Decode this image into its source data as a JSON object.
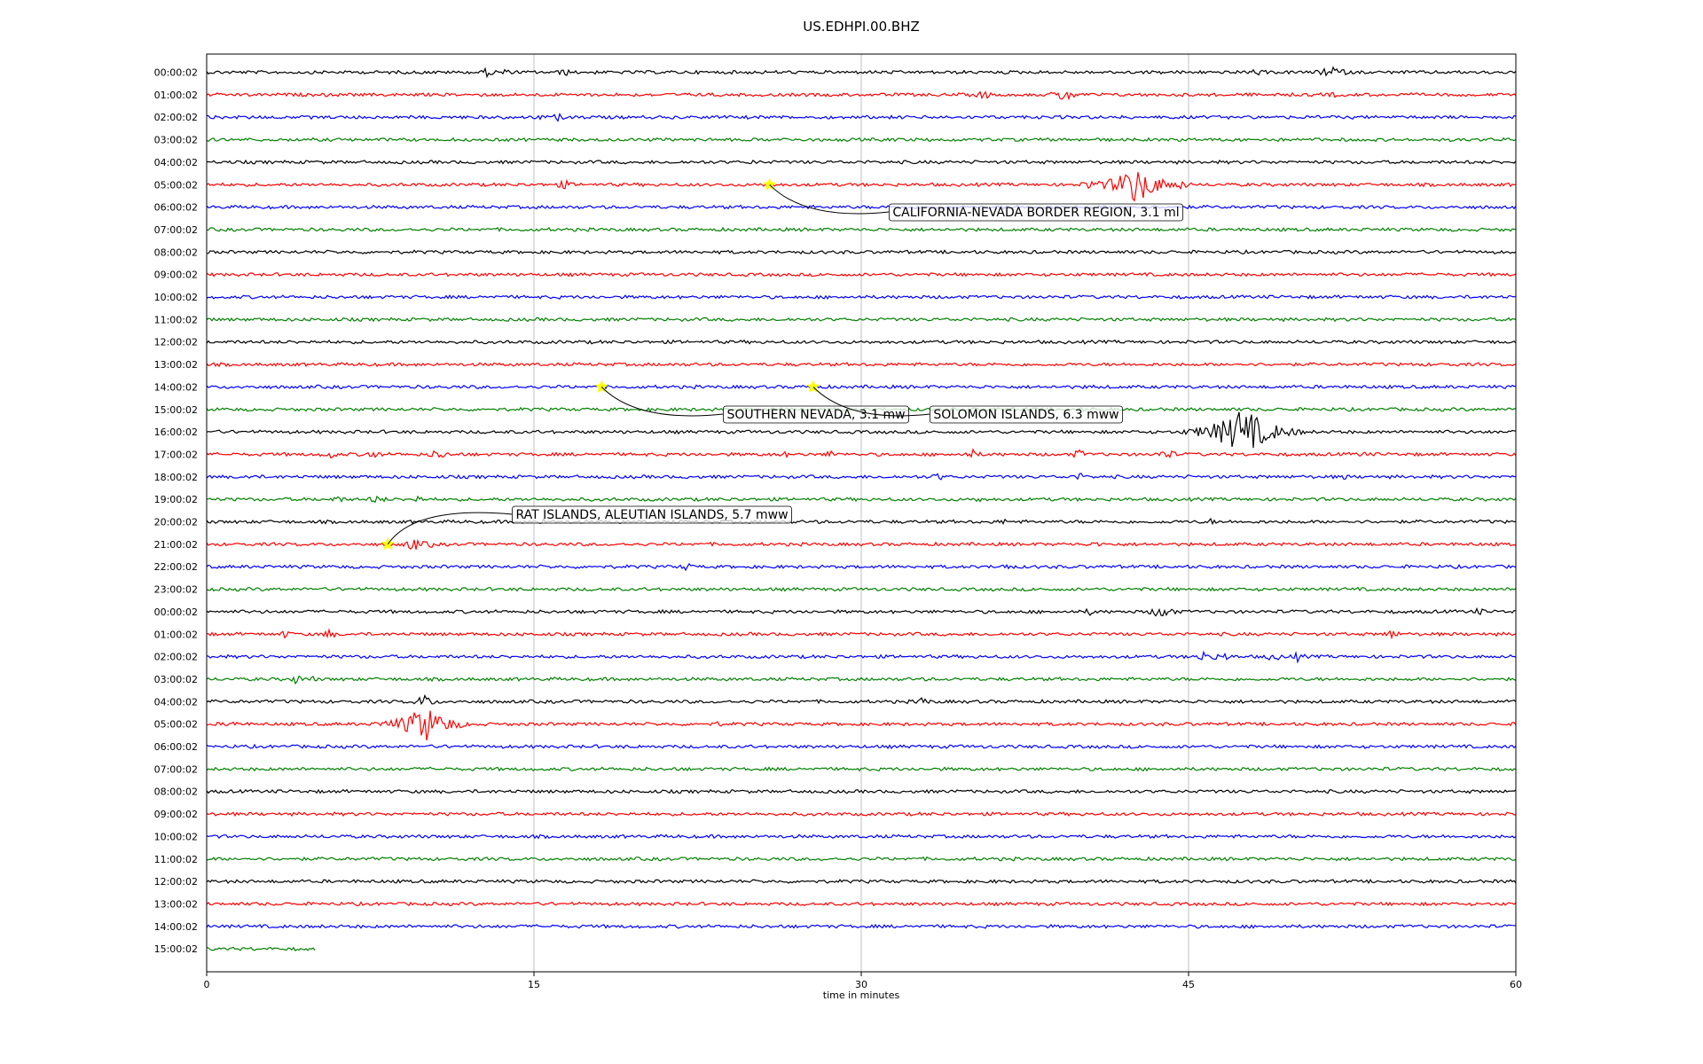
{
  "chart_data": {
    "type": "line",
    "title": "US.EDHPI.00.BHZ",
    "xlabel": "time in minutes",
    "ylabel": "",
    "xlim": [
      0,
      60
    ],
    "xticks": [
      0,
      15,
      30,
      45,
      60
    ],
    "grid_x": true,
    "legend": "none",
    "series_colors": [
      "#000000",
      "#ff0000",
      "#0000ff",
      "#008000"
    ],
    "hours": [
      "00:00:02",
      "01:00:02",
      "02:00:02",
      "03:00:02",
      "04:00:02",
      "05:00:02",
      "06:00:02",
      "07:00:02",
      "08:00:02",
      "09:00:02",
      "10:00:02",
      "11:00:02",
      "12:00:02",
      "13:00:02",
      "14:00:02",
      "15:00:02",
      "16:00:02",
      "17:00:02",
      "18:00:02",
      "19:00:02",
      "20:00:02",
      "21:00:02",
      "22:00:02",
      "23:00:02",
      "00:00:02",
      "01:00:02",
      "02:00:02",
      "03:00:02",
      "04:00:02",
      "05:00:02",
      "06:00:02",
      "07:00:02",
      "08:00:02",
      "09:00:02",
      "10:00:02",
      "11:00:02",
      "12:00:02",
      "13:00:02",
      "14:00:02",
      "15:00:02"
    ],
    "last_row_end_minute": 5,
    "bursts": [
      {
        "row": 0,
        "x": 12.9,
        "amp": 6
      },
      {
        "row": 0,
        "x": 13.6,
        "amp": 5
      },
      {
        "row": 0,
        "x": 16.4,
        "amp": 5
      },
      {
        "row": 0,
        "x": 48.1,
        "amp": 5
      },
      {
        "row": 0,
        "x": 51.6,
        "amp": 9
      },
      {
        "row": 1,
        "x": 5.0,
        "amp": 3
      },
      {
        "row": 1,
        "x": 35.6,
        "amp": 6
      },
      {
        "row": 1,
        "x": 39.3,
        "amp": 9
      },
      {
        "row": 1,
        "x": 51.6,
        "amp": 4
      },
      {
        "row": 2,
        "x": 15.2,
        "amp": 4
      },
      {
        "row": 2,
        "x": 16.1,
        "amp": 5
      },
      {
        "row": 4,
        "x": 25.1,
        "amp": 4
      },
      {
        "row": 5,
        "x": 16.4,
        "amp": 6
      },
      {
        "row": 5,
        "x": 40.5,
        "amp": 7
      },
      {
        "row": 5,
        "x": 42.6,
        "amp": 22
      },
      {
        "row": 5,
        "x": 44.6,
        "amp": 7
      },
      {
        "row": 14,
        "x": 40.5,
        "amp": 4
      },
      {
        "row": 16,
        "x": 46.8,
        "amp": 6
      },
      {
        "row": 16,
        "x": 47.5,
        "amp": 28
      },
      {
        "row": 16,
        "x": 48.2,
        "amp": 10
      },
      {
        "row": 16,
        "x": 49.0,
        "amp": 5
      },
      {
        "row": 17,
        "x": 5.6,
        "amp": 6
      },
      {
        "row": 17,
        "x": 7.6,
        "amp": 6
      },
      {
        "row": 17,
        "x": 10.6,
        "amp": 7
      },
      {
        "row": 17,
        "x": 26.4,
        "amp": 5
      },
      {
        "row": 17,
        "x": 28.6,
        "amp": 5
      },
      {
        "row": 17,
        "x": 35.1,
        "amp": 6
      },
      {
        "row": 17,
        "x": 40.0,
        "amp": 6
      },
      {
        "row": 17,
        "x": 44.0,
        "amp": 7
      },
      {
        "row": 17,
        "x": 53.0,
        "amp": 4
      },
      {
        "row": 18,
        "x": 1.8,
        "amp": 4
      },
      {
        "row": 18,
        "x": 33.5,
        "amp": 5
      },
      {
        "row": 18,
        "x": 40.0,
        "amp": 5
      },
      {
        "row": 18,
        "x": 52.1,
        "amp": 4
      },
      {
        "row": 19,
        "x": 6.0,
        "amp": 5
      },
      {
        "row": 19,
        "x": 7.8,
        "amp": 6
      },
      {
        "row": 19,
        "x": 9.7,
        "amp": 5
      },
      {
        "row": 19,
        "x": 35.4,
        "amp": 4
      },
      {
        "row": 20,
        "x": 15.4,
        "amp": 4
      },
      {
        "row": 20,
        "x": 36.5,
        "amp": 4
      },
      {
        "row": 20,
        "x": 46.0,
        "amp": 4
      },
      {
        "row": 21,
        "x": 9.5,
        "amp": 8
      },
      {
        "row": 21,
        "x": 10.2,
        "amp": 5
      },
      {
        "row": 21,
        "x": 40.8,
        "amp": 4
      },
      {
        "row": 22,
        "x": 22.0,
        "amp": 5
      },
      {
        "row": 22,
        "x": 36.6,
        "amp": 5
      },
      {
        "row": 24,
        "x": 40.5,
        "amp": 5
      },
      {
        "row": 24,
        "x": 43.8,
        "amp": 9
      },
      {
        "row": 24,
        "x": 58.3,
        "amp": 5
      },
      {
        "row": 25,
        "x": 3.6,
        "amp": 5
      },
      {
        "row": 25,
        "x": 5.6,
        "amp": 6
      },
      {
        "row": 25,
        "x": 54.3,
        "amp": 6
      },
      {
        "row": 26,
        "x": 45.8,
        "amp": 8
      },
      {
        "row": 26,
        "x": 46.6,
        "amp": 6
      },
      {
        "row": 26,
        "x": 48.9,
        "amp": 6
      },
      {
        "row": 26,
        "x": 50.0,
        "amp": 6
      },
      {
        "row": 27,
        "x": 4.1,
        "amp": 6
      },
      {
        "row": 27,
        "x": 4.9,
        "amp": 4
      },
      {
        "row": 28,
        "x": 10.0,
        "amp": 8
      },
      {
        "row": 28,
        "x": 32.8,
        "amp": 6
      },
      {
        "row": 29,
        "x": 1.2,
        "amp": 5
      },
      {
        "row": 29,
        "x": 8.2,
        "amp": 6
      },
      {
        "row": 29,
        "x": 10.0,
        "amp": 22
      },
      {
        "row": 29,
        "x": 23.4,
        "amp": 4
      },
      {
        "row": 31,
        "x": 10.4,
        "amp": 4
      }
    ],
    "events": [
      {
        "label": "CALIFORNIA-NEVADA BORDER REGION, 3.1 ml",
        "row": 5,
        "x": 25.8
      },
      {
        "label": "SOUTHERN NEVADA, 3.1 mw",
        "row": 14,
        "x": 18.1
      },
      {
        "label": "SOLOMON ISLANDS, 6.3 mww",
        "row": 14,
        "x": 27.8
      },
      {
        "label": "RAT ISLANDS, ALEUTIAN ISLANDS, 5.7 mww",
        "row": 21,
        "x": 8.3
      }
    ],
    "marker_color": "#ffff00"
  }
}
